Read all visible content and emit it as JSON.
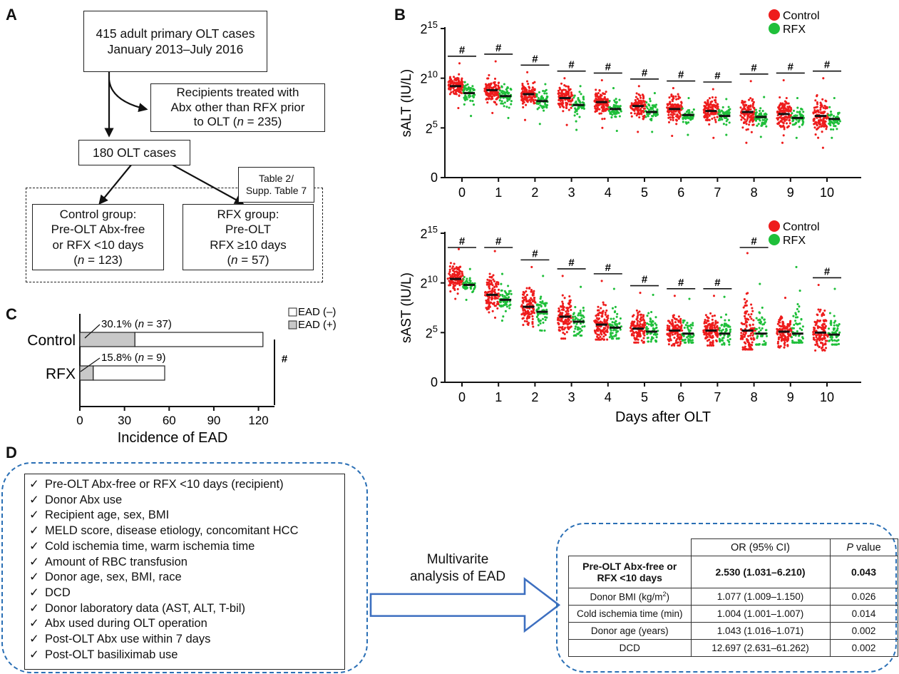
{
  "panels": {
    "a": "A",
    "b": "B",
    "c": "C",
    "d": "D"
  },
  "flow": {
    "top_line1": "415 adult primary OLT cases",
    "top_line2": "January 2013–July 2016",
    "excluded_line1": "Recipients treated with",
    "excluded_line2": "Abx other than RFX prior",
    "excluded_line3_prefix": "to OLT (",
    "excluded_n_italic": "n",
    "excluded_line3_suffix": " = 235)",
    "middle": "180 OLT cases",
    "table_label_line1": "Table 2/",
    "table_label_line2": "Supp. Table 7",
    "control_line1": "Control group:",
    "control_line2": "Pre-OLT Abx-free",
    "control_line3": "or RFX <10 days",
    "control_n_prefix": "(",
    "control_n_italic": "n",
    "control_n_suffix": " = 123)",
    "rfx_line1": "RFX group:",
    "rfx_line2": "Pre-OLT",
    "rfx_line3": "RFX ≥10 days",
    "rfx_n_prefix": "(",
    "rfx_n_italic": "n",
    "rfx_n_suffix": " = 57)"
  },
  "colors": {
    "control": "#ee1c1c",
    "rfx": "#1fbf3a",
    "ead_pos": "#c8c8c8",
    "ead_neg": "#ffffff",
    "dashed_blue": "#2a6fb5",
    "arrow_blue": "#3d6fc0"
  },
  "chart_data": [
    {
      "type": "scatter",
      "ylabel": "sALT (IU/L)",
      "x_categories": [
        "0",
        "1",
        "2",
        "3",
        "4",
        "5",
        "6",
        "7",
        "8",
        "9",
        "10"
      ],
      "y_ticks": [
        "0",
        "2^5",
        "2^10",
        "2^15"
      ],
      "y_scale": "log2",
      "ylim_log2": [
        0,
        15
      ],
      "legend": [
        {
          "name": "Control"
        },
        {
          "name": "RFX"
        }
      ],
      "legend_position": "top-right",
      "significance_label": "#",
      "significant_days": [
        0,
        1,
        2,
        3,
        4,
        5,
        6,
        7,
        8,
        9,
        10
      ],
      "series": [
        {
          "name": "Control",
          "n_points": 123,
          "median_log2": [
            9.2,
            8.8,
            8.4,
            8.0,
            7.6,
            7.2,
            6.9,
            6.7,
            6.6,
            6.4,
            6.2
          ],
          "range_log2": [
            [
              7.0,
              11.5
            ],
            [
              6.5,
              11.7
            ],
            [
              5.8,
              10.6
            ],
            [
              5.3,
              10.0
            ],
            [
              5.0,
              9.8
            ],
            [
              4.6,
              9.2
            ],
            [
              4.2,
              9.0
            ],
            [
              4.0,
              8.9
            ],
            [
              3.5,
              9.7
            ],
            [
              3.5,
              9.8
            ],
            [
              3.0,
              10.0
            ]
          ]
        },
        {
          "name": "RFX",
          "n_points": 57,
          "median_log2": [
            8.5,
            8.2,
            7.7,
            7.3,
            6.9,
            6.6,
            6.3,
            6.2,
            6.1,
            6.0,
            5.9
          ],
          "range_log2": [
            [
              6.2,
              9.6
            ],
            [
              6.0,
              9.4
            ],
            [
              5.4,
              9.4
            ],
            [
              4.8,
              9.2
            ],
            [
              4.7,
              9.0
            ],
            [
              4.6,
              8.5
            ],
            [
              4.3,
              8.0
            ],
            [
              4.3,
              7.9
            ],
            [
              4.1,
              8.1
            ],
            [
              4.0,
              8.0
            ],
            [
              4.0,
              8.0
            ]
          ]
        }
      ]
    },
    {
      "type": "scatter",
      "ylabel": "sAST (IU/L)",
      "xlabel": "Days after OLT",
      "x_categories": [
        "0",
        "1",
        "2",
        "3",
        "4",
        "5",
        "6",
        "7",
        "8",
        "9",
        "10"
      ],
      "y_ticks": [
        "0",
        "2^5",
        "2^10",
        "2^15"
      ],
      "y_scale": "log2",
      "ylim_log2": [
        0,
        15
      ],
      "legend": [
        {
          "name": "Control"
        },
        {
          "name": "RFX"
        }
      ],
      "legend_position": "top-right",
      "significance_label": "#",
      "significant_days": [
        0,
        1,
        2,
        3,
        4,
        5,
        6,
        7,
        8,
        10
      ],
      "series": [
        {
          "name": "Control",
          "n_points": 123,
          "median_log2": [
            10.4,
            8.8,
            7.6,
            6.6,
            5.8,
            5.4,
            5.2,
            5.2,
            5.2,
            5.1,
            5.0
          ],
          "range_log2": [
            [
              8.4,
              13.4
            ],
            [
              6.5,
              13.2
            ],
            [
              5.6,
              11.6
            ],
            [
              4.4,
              10.7
            ],
            [
              4.3,
              10.2
            ],
            [
              4.0,
              9.0
            ],
            [
              3.7,
              8.7
            ],
            [
              3.7,
              8.7
            ],
            [
              3.3,
              13.0
            ],
            [
              3.5,
              8.5
            ],
            [
              3.2,
              9.8
            ]
          ]
        },
        {
          "name": "RFX",
          "n_points": 57,
          "median_log2": [
            9.8,
            8.3,
            7.1,
            6.1,
            5.5,
            5.1,
            4.9,
            4.9,
            4.9,
            4.9,
            4.8
          ],
          "range_log2": [
            [
              8.3,
              11.4
            ],
            [
              6.2,
              10.9
            ],
            [
              5.2,
              10.7
            ],
            [
              4.7,
              9.6
            ],
            [
              4.4,
              9.4
            ],
            [
              4.1,
              8.8
            ],
            [
              4.0,
              8.4
            ],
            [
              3.8,
              8.6
            ],
            [
              3.8,
              9.9
            ],
            [
              4.0,
              11.6
            ],
            [
              3.8,
              9.4
            ]
          ]
        }
      ]
    },
    {
      "type": "bar",
      "orientation": "horizontal",
      "stacked": true,
      "categories": [
        "Control",
        "RFX"
      ],
      "series": [
        {
          "name": "EAD (+)",
          "values": [
            37,
            9
          ]
        },
        {
          "name": "EAD (–)",
          "values": [
            86,
            48
          ]
        }
      ],
      "data_labels": [
        {
          "pct": "30.1% (",
          "n": "n",
          "rest": " = 37)"
        },
        {
          "pct": "15.8% (",
          "n": "n",
          "rest": " = 9)"
        }
      ],
      "legend": [
        {
          "name": "EAD (–)"
        },
        {
          "name": "EAD (+)"
        }
      ],
      "xlabel": "Incidence of EAD",
      "x_ticks": [
        "0",
        "30",
        "60",
        "90",
        "120"
      ],
      "xlim": [
        0,
        125
      ],
      "significance_label": "#"
    }
  ],
  "panel_d": {
    "checklist": [
      "Pre-OLT Abx-free or RFX <10 days (recipient)",
      "Donor Abx use",
      "Recipient age, sex, BMI",
      "MELD score, disease etiology, concomitant HCC",
      "Cold ischemia time, warm ischemia time",
      "Amount of RBC transfusion",
      "Donor age, sex, BMI, race",
      "DCD",
      "Donor laboratory data (AST, ALT, T-bil)",
      "Abx used during OLT operation",
      "Post-OLT Abx use within 7 days",
      "Post-OLT basiliximab use"
    ],
    "check_symbol": "✓",
    "arrow_label_line1": "Multivarite",
    "arrow_label_line2": "analysis of EAD",
    "table_header": {
      "or": "OR (95% CI)",
      "p_italic": "P",
      "p_rest": " value"
    },
    "table_rows": [
      {
        "label": "Pre-OLT Abx-free or RFX <10 days",
        "or": "2.530 (1.031–6.210)",
        "p": "0.043",
        "bold": true
      },
      {
        "label": "Donor BMI (kg/m²)",
        "or": "1.077 (1.009–1.150)",
        "p": "0.026",
        "bold": false
      },
      {
        "label": "Cold ischemia time (min)",
        "or": "1.004 (1.001–1.007)",
        "p": "0.014",
        "bold": false
      },
      {
        "label": "Donor age (years)",
        "or": "1.043 (1.016–1.071)",
        "p": "0.002",
        "bold": false
      },
      {
        "label": "DCD",
        "or": "12.697 (2.631–61.262)",
        "p": "0.002",
        "bold": false
      }
    ]
  }
}
